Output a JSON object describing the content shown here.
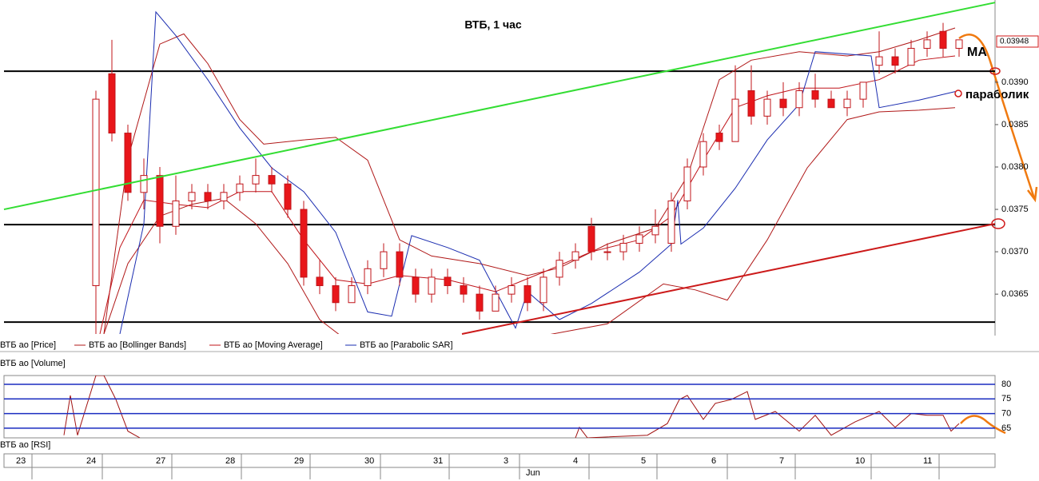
{
  "chart_data": {
    "type": "candlestick",
    "title": "ВТБ,  1 час",
    "annotations": [
      "MA",
      "параболик"
    ],
    "price_name": "ВТБ ао [Price]",
    "volume_name": "ВТБ ао [Volume]",
    "up_color": "#ffffff",
    "down_color": "#e8161a",
    "wick_color": "#c0141a",
    "xlim": [
      0,
      124
    ],
    "ylim": [
      0.03603,
      0.03997
    ],
    "yticks": [
      {
        "value": 0.039,
        "label": "0.0390"
      },
      {
        "value": 0.0385,
        "label": "0.0385"
      },
      {
        "value": 0.038,
        "label": "0.0380"
      },
      {
        "value": 0.0375,
        "label": "0.0375"
      },
      {
        "value": 0.037,
        "label": "0.0370"
      },
      {
        "value": 0.0365,
        "label": "0.0365"
      }
    ],
    "xticks": [
      {
        "value": 3.5,
        "label": "23"
      },
      {
        "value": 12.3,
        "label": "24"
      },
      {
        "value": 21,
        "label": "27"
      },
      {
        "value": 29.7,
        "label": "28"
      },
      {
        "value": 38.3,
        "label": "29"
      },
      {
        "value": 47.1,
        "label": "30"
      },
      {
        "value": 55.7,
        "label": "31"
      },
      {
        "value": 64.5,
        "label": "3"
      },
      {
        "value": 73.2,
        "label": "4"
      },
      {
        "value": 81.7,
        "label": "5"
      },
      {
        "value": 90.5,
        "label": "6"
      },
      {
        "value": 99,
        "label": "7"
      },
      {
        "value": 108.5,
        "label": "10"
      },
      {
        "value": 117,
        "label": "11"
      }
    ],
    "month_label": "Jun",
    "last_price": 0.03948,
    "x": [
      11.5,
      13.5,
      15.5,
      17.5,
      19.5,
      21.5,
      23.5,
      25.5,
      27.5,
      29.5,
      31.5,
      33.5,
      35.5,
      37.5,
      39.5,
      41.5,
      43.5,
      45.5,
      47.5,
      49.5,
      51.5,
      53.5,
      55.5,
      57.5,
      59.5,
      61.5,
      63.5,
      65.5,
      67.5,
      69.5,
      71.5,
      73.5,
      75.5,
      77.5,
      79.5,
      81.5,
      83.5,
      85.5,
      87.5,
      89.5,
      91.5,
      93.5,
      95.5,
      97.5,
      99.5,
      101.5,
      103.5,
      105.5,
      107.5,
      109.5,
      111.5,
      113.5,
      115.5,
      117.5,
      119.5
    ],
    "open": [
      0.0366,
      0.0391,
      0.0384,
      0.0377,
      0.0379,
      0.0373,
      0.0376,
      0.0377,
      0.0376,
      0.0377,
      0.0378,
      0.0379,
      0.0378,
      0.0375,
      0.0367,
      0.0366,
      0.0364,
      0.0366,
      0.0368,
      0.037,
      0.0367,
      0.0365,
      0.0367,
      0.0366,
      0.0365,
      0.0363,
      0.0365,
      0.0366,
      0.0364,
      0.0367,
      0.0369,
      0.0373,
      0.037,
      0.037,
      0.0371,
      0.0372,
      0.0371,
      0.0376,
      0.038,
      0.0384,
      0.0383,
      0.0389,
      0.0386,
      0.0388,
      0.0387,
      0.0389,
      0.0388,
      0.0387,
      0.0388,
      0.0392,
      0.0393,
      0.0392,
      0.0394,
      0.0396,
      0.0394
    ],
    "high": [
      0.0389,
      0.0395,
      0.0385,
      0.0381,
      0.038,
      0.0379,
      0.0378,
      0.0378,
      0.0378,
      0.0379,
      0.0381,
      0.038,
      0.0379,
      0.0376,
      0.0369,
      0.0367,
      0.0367,
      0.0369,
      0.0371,
      0.0371,
      0.0368,
      0.0368,
      0.0368,
      0.0367,
      0.0366,
      0.0366,
      0.0367,
      0.0367,
      0.0368,
      0.037,
      0.0371,
      0.0374,
      0.0371,
      0.0372,
      0.0373,
      0.0375,
      0.0377,
      0.0381,
      0.0384,
      0.0385,
      0.0392,
      0.0392,
      0.0389,
      0.039,
      0.039,
      0.0391,
      0.0389,
      0.0389,
      0.039,
      0.0396,
      0.0394,
      0.0395,
      0.0396,
      0.0397,
      0.0395
    ],
    "low": [
      0.036,
      0.0383,
      0.0376,
      0.0375,
      0.0371,
      0.0372,
      0.0375,
      0.0375,
      0.0375,
      0.0376,
      0.0377,
      0.0377,
      0.0374,
      0.0366,
      0.0365,
      0.0363,
      0.0364,
      0.0365,
      0.0367,
      0.0366,
      0.0364,
      0.0364,
      0.0365,
      0.0364,
      0.0362,
      0.0363,
      0.0364,
      0.0363,
      0.0363,
      0.0366,
      0.0368,
      0.0369,
      0.0369,
      0.0369,
      0.037,
      0.0371,
      0.037,
      0.0375,
      0.0379,
      0.0382,
      0.0383,
      0.0385,
      0.0385,
      0.0386,
      0.0386,
      0.0387,
      0.0387,
      0.0386,
      0.0387,
      0.0391,
      0.0391,
      0.0392,
      0.0393,
      0.0393,
      0.0393
    ],
    "close": [
      0.0388,
      0.0384,
      0.0377,
      0.0379,
      0.0373,
      0.0376,
      0.0377,
      0.0376,
      0.0377,
      0.0378,
      0.0379,
      0.0378,
      0.0375,
      0.0367,
      0.0366,
      0.0364,
      0.0366,
      0.0368,
      0.037,
      0.0367,
      0.0365,
      0.0367,
      0.0366,
      0.0365,
      0.0363,
      0.0365,
      0.0366,
      0.0364,
      0.0367,
      0.0369,
      0.037,
      0.037,
      0.037,
      0.0371,
      0.0372,
      0.0373,
      0.0376,
      0.038,
      0.0383,
      0.0383,
      0.0388,
      0.0386,
      0.0388,
      0.0387,
      0.0389,
      0.0388,
      0.0387,
      0.0388,
      0.039,
      0.0393,
      0.0392,
      0.0394,
      0.0395,
      0.0394,
      0.0395
    ],
    "series": [
      {
        "name": "ВТБ ао [Bollinger Bands]",
        "color": "#b01818",
        "x": [
          12.5,
          15.5,
          19.5,
          22.5,
          25.5,
          29.5,
          32.5,
          37.5,
          41.5,
          45.5,
          49.5,
          53.5,
          59.5,
          65.5,
          69.5,
          75.5,
          81.5,
          85.5,
          89.5,
          93.5,
          99.5,
          105.5,
          109.5,
          114.5,
          119
        ],
        "values": [
          0.03603,
          0.0381,
          0.03945,
          0.03957,
          0.03922,
          0.03856,
          0.03827,
          0.03832,
          0.03835,
          0.03808,
          0.03714,
          0.03695,
          0.03686,
          0.03672,
          0.03681,
          0.03709,
          0.03728,
          0.03789,
          0.03903,
          0.03926,
          0.03936,
          0.03931,
          0.03936,
          0.0395,
          0.03964
        ]
      },
      {
        "name": "",
        "color": "#b01818",
        "x": [
          12.5,
          15.5,
          19.5,
          23.5,
          27.5,
          31.5,
          35.5,
          39.5,
          43.5,
          49.5,
          55.5,
          61.5,
          67.5,
          75.5,
          82.5,
          86.5,
          90.5,
          95.5,
          100.5,
          105.5,
          109.5,
          114.5,
          119
        ],
        "values": [
          0.03603,
          0.03686,
          0.03742,
          0.03756,
          0.03763,
          0.03733,
          0.03686,
          0.0362,
          0.03591,
          0.03596,
          0.03596,
          0.03591,
          0.03601,
          0.03615,
          0.03662,
          0.03655,
          0.03643,
          0.03714,
          0.03799,
          0.03856,
          0.03865,
          0.03867,
          0.0387
        ]
      },
      {
        "name": "ВТБ ао [Moving Average]",
        "color": "#c0141a",
        "x": [
          12,
          14.5,
          17.5,
          21.5,
          25.5,
          29.5,
          33.5,
          37.5,
          41.5,
          45.5,
          49.5,
          55.5,
          61.5,
          67.5,
          73.5,
          79.5,
          83.5,
          87.5,
          91.5,
          95.5,
          99.5,
          104.5,
          109.5,
          114.5,
          119
        ],
        "values": [
          0.03603,
          0.03705,
          0.03761,
          0.03756,
          0.03752,
          0.03771,
          0.03771,
          0.03714,
          0.03667,
          0.03662,
          0.03672,
          0.03667,
          0.03653,
          0.03676,
          0.037,
          0.03714,
          0.03742,
          0.03808,
          0.0387,
          0.03884,
          0.03893,
          0.03893,
          0.03903,
          0.03926,
          0.03931
        ]
      },
      {
        "name": "ВТБ ао [Parabolic SAR]",
        "color": "#1a2cb0",
        "x": [
          14.5,
          17.5,
          19,
          21.5,
          25.5,
          29.5,
          33.5,
          37.5,
          41.5,
          45.5,
          48.5,
          51,
          55.5,
          59.5,
          64,
          65.5,
          69.5,
          73.5,
          79.5,
          83.5,
          84.3,
          84.7,
          87.5,
          91.5,
          95.5,
          99.5,
          101.5,
          108.5,
          109.5,
          114.5,
          119
        ],
        "values": [
          0.03603,
          0.03733,
          0.03983,
          0.03955,
          0.03903,
          0.03846,
          0.03799,
          0.03771,
          0.03723,
          0.03629,
          0.03624,
          0.03719,
          0.03705,
          0.0369,
          0.0361,
          0.03653,
          0.0362,
          0.03639,
          0.03676,
          0.03709,
          0.03761,
          0.03709,
          0.03728,
          0.03775,
          0.03832,
          0.03874,
          0.03936,
          0.03931,
          0.0387,
          0.03879,
          0.03889
        ]
      }
    ],
    "levels": [
      0.03913,
      0.03732,
      0.03617
    ],
    "trendlines": [
      {
        "color": "#33dd33",
        "x": [
          0,
          124
        ],
        "values": [
          0.0375,
          0.03994
        ]
      },
      {
        "color": "#cc1a1a",
        "x": [
          57.3,
          124
        ],
        "values": [
          0.03603,
          0.03733
        ]
      }
    ],
    "rsi": {
      "name": "ВТБ ао [RSI]",
      "color": "#a01010",
      "ylim": [
        61.7,
        83
      ],
      "yticks": [
        80,
        75,
        70,
        65
      ],
      "x": [
        7.5,
        8.3,
        9.2,
        11.5,
        12.5,
        14,
        15.5,
        17,
        null,
        71.5,
        72,
        73,
        80.5,
        83,
        84.5,
        85.5,
        87.5,
        89,
        91,
        93,
        94,
        96.5,
        99.5,
        101.5,
        103.5,
        106.5,
        109.5,
        111.5,
        113.5,
        115.5,
        117.5,
        118.5,
        119.5
      ],
      "values": [
        62.6,
        76.2,
        62.6,
        83,
        83,
        74.8,
        64,
        61.7,
        null,
        61.7,
        65.3,
        61.7,
        62.6,
        66.6,
        74.8,
        76.2,
        68,
        73.5,
        74.8,
        77.5,
        68,
        70.7,
        64,
        69.4,
        62.6,
        67.2,
        70.7,
        65.3,
        70,
        69.4,
        69.4,
        64,
        66.6
      ]
    }
  }
}
